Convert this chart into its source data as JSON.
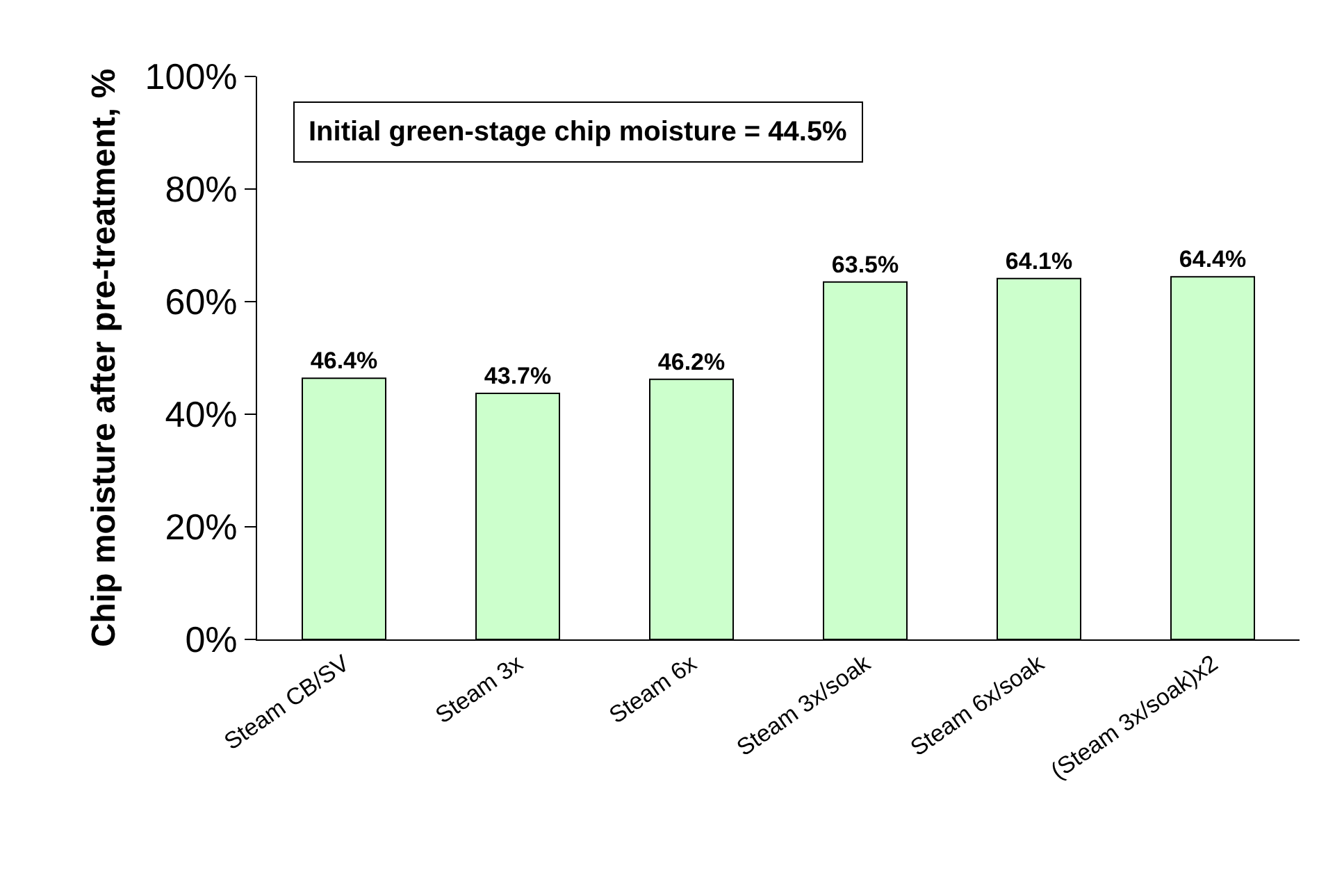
{
  "chart_data": {
    "type": "bar",
    "ylabel": "Chip moisture after pre-treatment, %",
    "categories": [
      "Steam CB/SV",
      "Steam 3x",
      "Steam 6x",
      "Steam 3x/soak",
      "Steam 6x/soak",
      "(Steam 3x/soak)x2"
    ],
    "values": [
      46.4,
      43.7,
      46.2,
      63.5,
      64.1,
      64.4
    ],
    "value_labels": [
      "46.4%",
      "43.7%",
      "46.2%",
      "63.5%",
      "64.1%",
      "64.4%"
    ],
    "color": "#ccffcc",
    "ylim": [
      0,
      100
    ],
    "yticks": [
      {
        "value": 0,
        "label": "0%"
      },
      {
        "value": 20,
        "label": "20%"
      },
      {
        "value": 40,
        "label": "40%"
      },
      {
        "value": 60,
        "label": "60%"
      },
      {
        "value": 80,
        "label": "80%"
      },
      {
        "value": 100,
        "label": "100%"
      }
    ],
    "annotations": [
      "Initial green-stage chip moisture = 44.5%"
    ]
  }
}
